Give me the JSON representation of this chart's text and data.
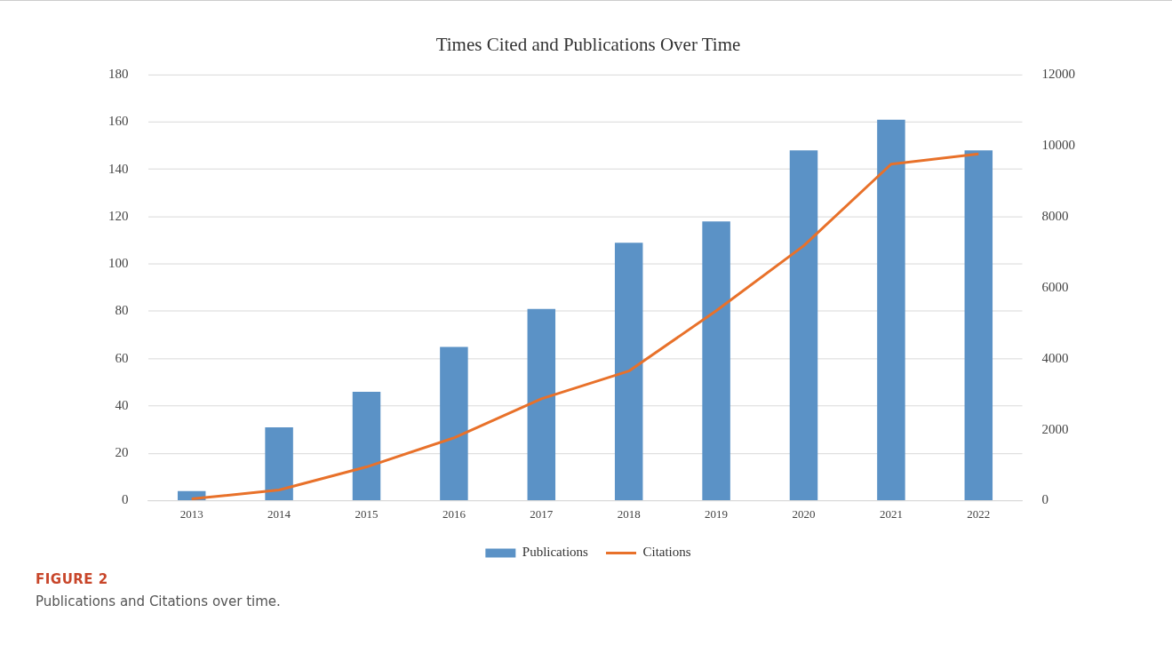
{
  "chart_data": {
    "type": "bar",
    "title": "Times Cited and Publications Over Time",
    "categories": [
      "2013",
      "2014",
      "2015",
      "2016",
      "2017",
      "2018",
      "2019",
      "2020",
      "2021",
      "2022"
    ],
    "series": [
      {
        "name": "Publications",
        "color": "#5b92c6",
        "values": [
          4,
          31,
          46,
          65,
          81,
          109,
          118,
          148,
          161,
          148
        ]
      },
      {
        "name": "Citations",
        "type": "line",
        "axis": "y2",
        "color": "#e8712a",
        "values": [
          50,
          300,
          950,
          1770,
          2870,
          3650,
          5350,
          7180,
          9480,
          9770
        ]
      }
    ],
    "ylim": [
      0,
      180
    ],
    "yticks": [
      0,
      20,
      40,
      60,
      80,
      100,
      120,
      140,
      160,
      180
    ],
    "y2lim": [
      0,
      12000
    ],
    "y2ticks": [
      0,
      2000,
      4000,
      6000,
      8000,
      10000,
      12000
    ],
    "grid": "y",
    "legend": "bottom",
    "marker": "none",
    "line_style": "solid",
    "annotations": [
      "FIGURE 2",
      "Publications and Citations over time."
    ]
  }
}
